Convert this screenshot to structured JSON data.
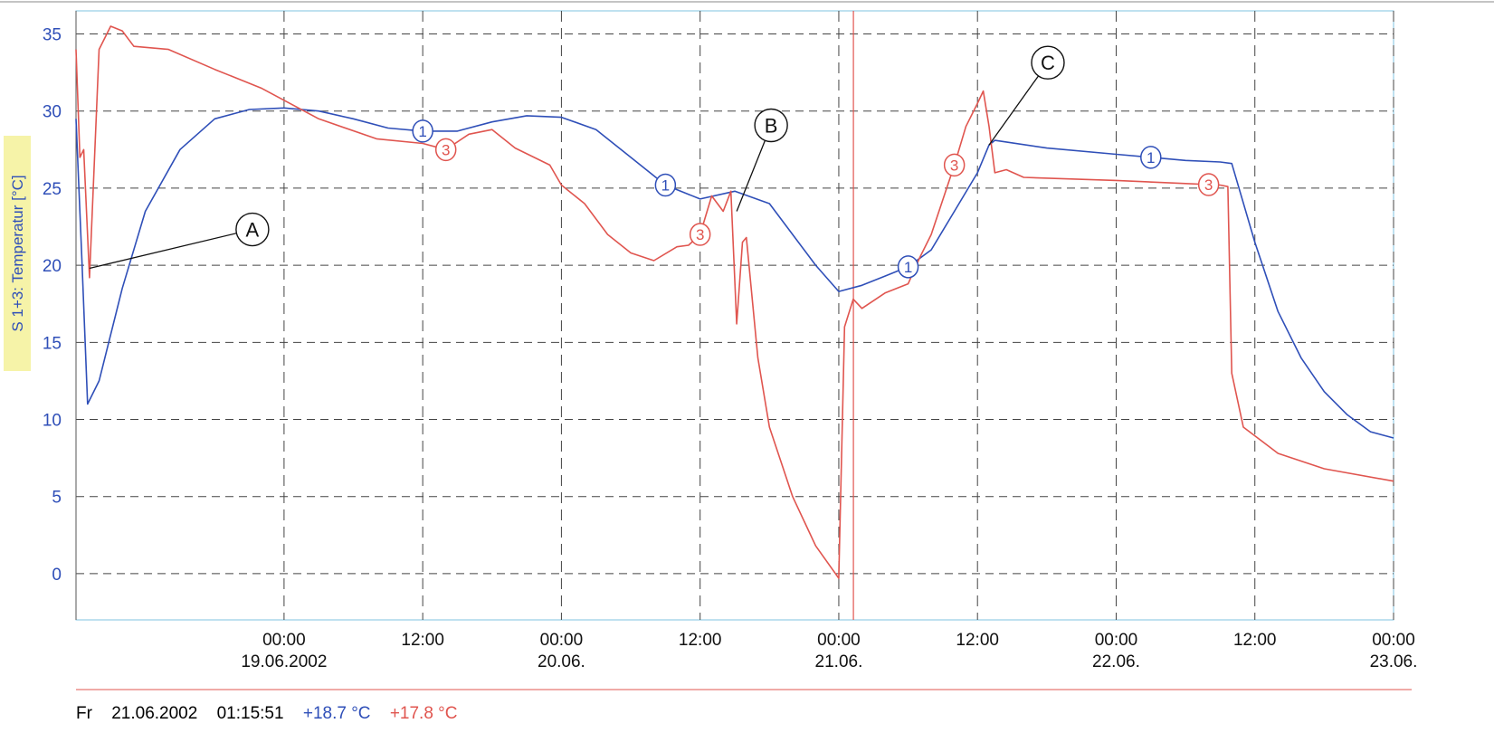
{
  "chart_data": {
    "type": "line",
    "ylabel": "S 1+3: Temperatur [°C]",
    "ylim": [
      -3,
      36.5
    ],
    "y_ticks": [
      0,
      5,
      10,
      15,
      20,
      25,
      30,
      35
    ],
    "xlim": [
      "2002-06-18T06:00",
      "2002-06-23T00:00"
    ],
    "x_ticks": [
      {
        "time": "2002-06-19T00:00",
        "line1": "00:00",
        "line2": "19.06.2002"
      },
      {
        "time": "2002-06-19T12:00",
        "line1": "12:00",
        "line2": ""
      },
      {
        "time": "2002-06-20T00:00",
        "line1": "00:00",
        "line2": "20.06."
      },
      {
        "time": "2002-06-20T12:00",
        "line1": "12:00",
        "line2": ""
      },
      {
        "time": "2002-06-21T00:00",
        "line1": "00:00",
        "line2": "21.06."
      },
      {
        "time": "2002-06-21T12:00",
        "line1": "12:00",
        "line2": ""
      },
      {
        "time": "2002-06-22T00:00",
        "line1": "00:00",
        "line2": "22.06."
      },
      {
        "time": "2002-06-22T12:00",
        "line1": "12:00",
        "line2": ""
      },
      {
        "time": "2002-06-23T00:00",
        "line1": "00:00",
        "line2": "23.06."
      }
    ],
    "grid": true,
    "cursor_time": "2002-06-21T01:15:51",
    "series": [
      {
        "name": "1",
        "color": "#2f4fb8",
        "points": [
          [
            "2002-06-18T06:00",
            29.5
          ],
          [
            "2002-06-18T06:30",
            20.5
          ],
          [
            "2002-06-18T07:00",
            11.0
          ],
          [
            "2002-06-18T08:00",
            12.5
          ],
          [
            "2002-06-18T10:00",
            18.5
          ],
          [
            "2002-06-18T12:00",
            23.5
          ],
          [
            "2002-06-18T15:00",
            27.5
          ],
          [
            "2002-06-18T18:00",
            29.5
          ],
          [
            "2002-06-18T21:00",
            30.1
          ],
          [
            "2002-06-19T00:00",
            30.2
          ],
          [
            "2002-06-19T03:00",
            30.0
          ],
          [
            "2002-06-19T06:00",
            29.5
          ],
          [
            "2002-06-19T09:00",
            28.9
          ],
          [
            "2002-06-19T12:00",
            28.7
          ],
          [
            "2002-06-19T15:00",
            28.7
          ],
          [
            "2002-06-19T18:00",
            29.3
          ],
          [
            "2002-06-19T21:00",
            29.7
          ],
          [
            "2002-06-20T00:00",
            29.6
          ],
          [
            "2002-06-20T03:00",
            28.8
          ],
          [
            "2002-06-20T06:00",
            27.0
          ],
          [
            "2002-06-20T09:00",
            25.2
          ],
          [
            "2002-06-20T12:00",
            24.3
          ],
          [
            "2002-06-20T15:00",
            24.8
          ],
          [
            "2002-06-20T18:00",
            24.0
          ],
          [
            "2002-06-20T20:00",
            22.0
          ],
          [
            "2002-06-20T22:00",
            20.0
          ],
          [
            "2002-06-21T00:00",
            18.3
          ],
          [
            "2002-06-21T02:00",
            18.7
          ],
          [
            "2002-06-21T04:00",
            19.3
          ],
          [
            "2002-06-21T06:00",
            19.9
          ],
          [
            "2002-06-21T08:00",
            21.0
          ],
          [
            "2002-06-21T10:00",
            23.5
          ],
          [
            "2002-06-21T12:00",
            26.0
          ],
          [
            "2002-06-21T13:00",
            27.8
          ],
          [
            "2002-06-21T13:30",
            28.1
          ],
          [
            "2002-06-21T18:00",
            27.6
          ],
          [
            "2002-06-22T00:00",
            27.2
          ],
          [
            "2002-06-22T06:00",
            26.8
          ],
          [
            "2002-06-22T09:00",
            26.7
          ],
          [
            "2002-06-22T10:00",
            26.6
          ],
          [
            "2002-06-22T12:00",
            21.5
          ],
          [
            "2002-06-22T14:00",
            17.0
          ],
          [
            "2002-06-22T16:00",
            14.0
          ],
          [
            "2002-06-22T18:00",
            11.8
          ],
          [
            "2002-06-22T20:00",
            10.3
          ],
          [
            "2002-06-22T22:00",
            9.2
          ],
          [
            "2002-06-23T00:00",
            8.8
          ]
        ],
        "markers": [
          "2002-06-19T12:00",
          "2002-06-20T09:00",
          "2002-06-21T06:00",
          "2002-06-22T03:00"
        ]
      },
      {
        "name": "3",
        "color": "#e0554f",
        "points": [
          [
            "2002-06-18T06:00",
            34.0
          ],
          [
            "2002-06-18T06:20",
            27.0
          ],
          [
            "2002-06-18T06:40",
            27.5
          ],
          [
            "2002-06-18T07:10",
            19.2
          ],
          [
            "2002-06-18T08:00",
            34.0
          ],
          [
            "2002-06-18T09:00",
            35.5
          ],
          [
            "2002-06-18T10:00",
            35.2
          ],
          [
            "2002-06-18T11:00",
            34.2
          ],
          [
            "2002-06-18T14:00",
            34.0
          ],
          [
            "2002-06-18T18:00",
            32.7
          ],
          [
            "2002-06-18T22:00",
            31.5
          ],
          [
            "2002-06-19T03:00",
            29.5
          ],
          [
            "2002-06-19T08:00",
            28.2
          ],
          [
            "2002-06-19T12:00",
            27.9
          ],
          [
            "2002-06-19T14:00",
            27.5
          ],
          [
            "2002-06-19T16:00",
            28.5
          ],
          [
            "2002-06-19T18:00",
            28.8
          ],
          [
            "2002-06-19T20:00",
            27.6
          ],
          [
            "2002-06-19T23:00",
            26.5
          ],
          [
            "2002-06-20T00:00",
            25.2
          ],
          [
            "2002-06-20T02:00",
            24.0
          ],
          [
            "2002-06-20T04:00",
            22.0
          ],
          [
            "2002-06-20T06:00",
            20.8
          ],
          [
            "2002-06-20T08:00",
            20.3
          ],
          [
            "2002-06-20T10:00",
            21.2
          ],
          [
            "2002-06-20T11:00",
            21.3
          ],
          [
            "2002-06-20T12:00",
            22.0
          ],
          [
            "2002-06-20T13:00",
            24.5
          ],
          [
            "2002-06-20T14:00",
            23.5
          ],
          [
            "2002-06-20T14:40",
            24.8
          ],
          [
            "2002-06-20T15:10",
            16.2
          ],
          [
            "2002-06-20T15:40",
            21.5
          ],
          [
            "2002-06-20T16:00",
            21.8
          ],
          [
            "2002-06-20T17:00",
            14.0
          ],
          [
            "2002-06-20T18:00",
            9.5
          ],
          [
            "2002-06-20T20:00",
            5.0
          ],
          [
            "2002-06-20T22:00",
            1.8
          ],
          [
            "2002-06-21T00:00",
            -0.3
          ],
          [
            "2002-06-21T00:30",
            16.0
          ],
          [
            "2002-06-21T01:15",
            17.8
          ],
          [
            "2002-06-21T02:00",
            17.2
          ],
          [
            "2002-06-21T04:00",
            18.2
          ],
          [
            "2002-06-21T06:00",
            18.8
          ],
          [
            "2002-06-21T07:00",
            20.5
          ],
          [
            "2002-06-21T08:00",
            22.0
          ],
          [
            "2002-06-21T10:00",
            26.5
          ],
          [
            "2002-06-21T11:00",
            29.0
          ],
          [
            "2002-06-21T12:00",
            30.5
          ],
          [
            "2002-06-21T12:30",
            31.3
          ],
          [
            "2002-06-21T13:00",
            29.0
          ],
          [
            "2002-06-21T13:30",
            26.0
          ],
          [
            "2002-06-21T14:30",
            26.2
          ],
          [
            "2002-06-21T16:00",
            25.7
          ],
          [
            "2002-06-22T00:00",
            25.5
          ],
          [
            "2002-06-22T06:00",
            25.3
          ],
          [
            "2002-06-22T09:00",
            25.2
          ],
          [
            "2002-06-22T09:40",
            25.1
          ],
          [
            "2002-06-22T10:00",
            13.0
          ],
          [
            "2002-06-22T11:00",
            9.5
          ],
          [
            "2002-06-22T14:00",
            7.8
          ],
          [
            "2002-06-22T18:00",
            6.8
          ],
          [
            "2002-06-23T00:00",
            6.0
          ]
        ],
        "markers": [
          "2002-06-19T14:00",
          "2002-06-20T12:00",
          "2002-06-21T10:00",
          "2002-06-22T08:00"
        ]
      }
    ],
    "annotations": [
      {
        "label": "A",
        "time": "2002-06-18T07:10",
        "value": 19.8
      },
      {
        "label": "B",
        "time": "2002-06-20T15:10",
        "value": 23.5
      },
      {
        "label": "C",
        "time": "2002-06-21T13:00",
        "value": 27.8
      }
    ]
  },
  "status_bar": {
    "day": "Fr",
    "date": "21.06.2002",
    "time": "01:15:51",
    "value1": "+18.7 °C",
    "value2": "+17.8 °C",
    "color1": "#2f4fb8",
    "color2": "#e0554f"
  }
}
